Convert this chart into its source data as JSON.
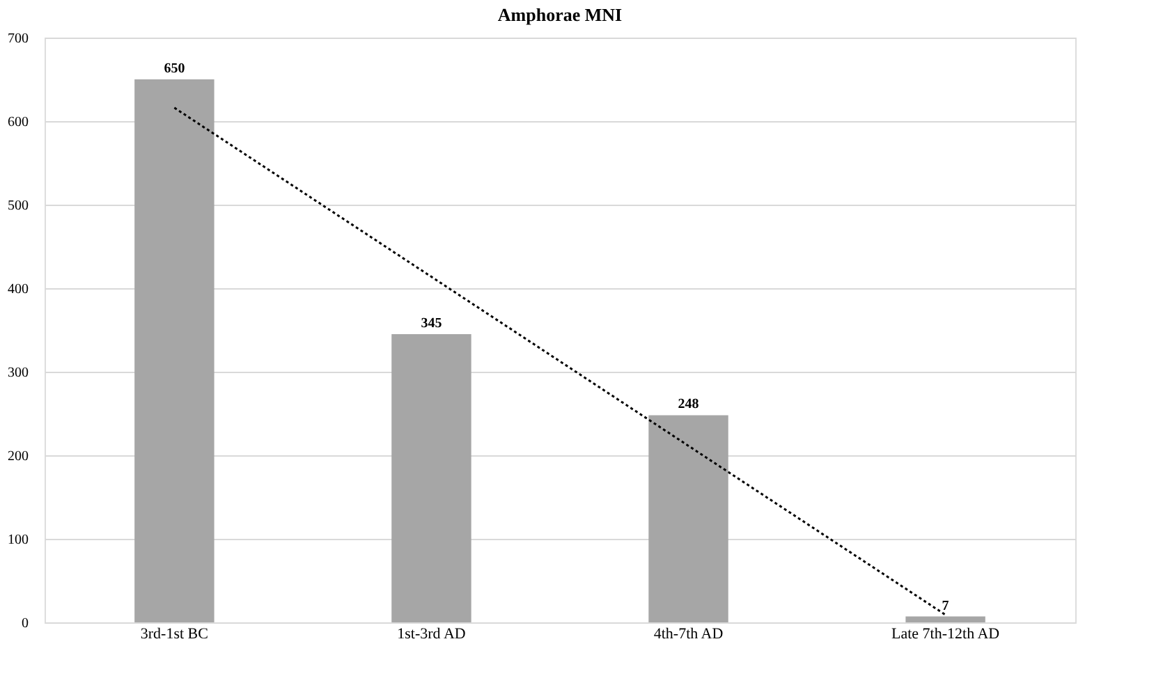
{
  "chart_data": {
    "type": "bar",
    "title": "Amphorae MNI",
    "categories": [
      "3rd-1st BC",
      "1st-3rd AD",
      "4th-7th AD",
      "Late 7th-12th AD"
    ],
    "series": [
      {
        "color": "#a6a6a6",
        "values": [
          650,
          345,
          248,
          7
        ],
        "value_labels": [
          "650",
          "345",
          "248",
          "7"
        ]
      },
      {
        "type": "line",
        "color": "#000000",
        "line_style": "dotted",
        "x": [
          "3rd-1st BC",
          "Late 7th-12th AD"
        ],
        "values": [
          616,
          9
        ]
      }
    ],
    "ylim": [
      0,
      700
    ],
    "yticks": [
      0,
      100,
      200,
      300,
      400,
      500,
      600,
      700
    ],
    "grid": "y"
  }
}
